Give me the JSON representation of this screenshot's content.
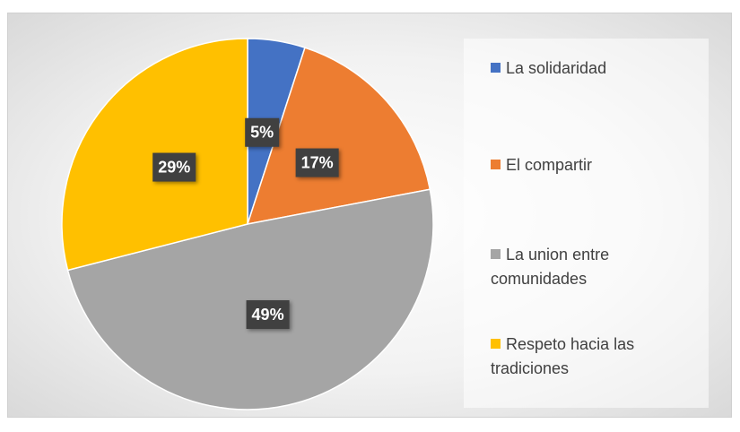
{
  "chart_data": {
    "type": "pie",
    "categories": [
      "La solidaridad",
      "El compartir",
      "La union entre comunidades",
      "Respeto hacia las tradiciones"
    ],
    "values": [
      5,
      17,
      49,
      29
    ],
    "value_labels": [
      "5%",
      "17%",
      "49%",
      "29%"
    ],
    "colors": [
      "#4472c4",
      "#ed7d31",
      "#a5a5a5",
      "#ffc000"
    ],
    "legend": "right"
  }
}
